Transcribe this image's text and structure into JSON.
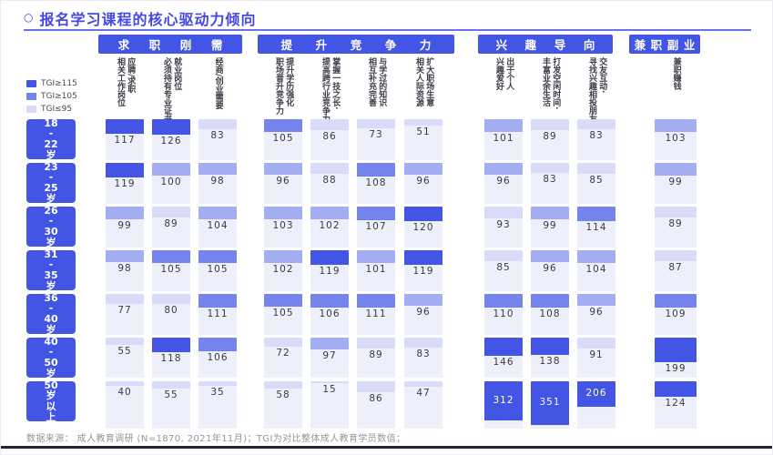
{
  "title": {
    "bullet": "○",
    "text": "报名学习课程的核心驱动力倾向"
  },
  "legend": [
    {
      "label": "TGI≥115",
      "tier": "tgi_ge_115"
    },
    {
      "label": "TGI≥105",
      "tier": "tgi_ge_105"
    },
    {
      "label": "TGI≤95",
      "tier": "tgi_le_95"
    }
  ],
  "colors": {
    "accent": "#4547e8",
    "tgi_ge_115": "#4355e5",
    "tgi_ge_105": "#7583ec",
    "tgi_mid_95_105": "#a3aef2",
    "tgi_le_95": "#d8dcf8",
    "cell_bg": "#edeffb",
    "header_bg": "#4355e5"
  },
  "footer": "数据来源： 成人教育调研 (N=1870, 2021年11月)；TGI为对比整体成人教育学员数值；",
  "chart_data": {
    "type": "heatmap",
    "title": "报名学习课程的核心驱动力倾向",
    "unit": "TGI",
    "legend": [
      "TGI≥115",
      "TGI≥105",
      "TGI≤95"
    ],
    "row_labels": [
      "18-22岁",
      "23-25岁",
      "26-30岁",
      "31-35岁",
      "36-40岁",
      "40-50岁",
      "50岁以上"
    ],
    "row_label_lines": [
      "18\n-\n22\n岁",
      "23\n-\n25\n岁",
      "26\n-\n30\n岁",
      "31\n-\n35\n岁",
      "36\n-\n40\n岁",
      "40\n-\n50\n岁",
      "50\n岁\n以\n上"
    ],
    "column_groups": [
      {
        "name": "求职刚需",
        "columns": [
          "应聘/求职\n相关工作岗位",
          "就业岗位\n必须持有专业证书",
          "经商/创业需要"
        ]
      },
      {
        "name": "提升竞争力",
        "columns": [
          "提升学历强化\n职场晋升竞争力",
          "掌握一技之长·\n提高跨行业竞争力",
          "与学过的知识\n相互补充完善",
          "扩大职场生意\n相关人际资源"
        ]
      },
      {
        "name": "兴趣导向",
        "columns": [
          "出于个人\n兴趣爱好",
          "打发空闲时间·\n丰富业余生活",
          "交友互动·\n寻找兴趣相投朋友"
        ]
      },
      {
        "name": "兼职副业",
        "columns": [
          "兼职赚钱"
        ]
      }
    ],
    "values": [
      [
        117,
        126,
        83,
        105,
        86,
        73,
        51,
        101,
        89,
        83,
        103
      ],
      [
        119,
        100,
        98,
        96,
        88,
        108,
        96,
        96,
        83,
        85,
        99
      ],
      [
        99,
        89,
        104,
        103,
        102,
        107,
        120,
        93,
        99,
        114,
        89
      ],
      [
        98,
        105,
        105,
        102,
        119,
        101,
        119,
        85,
        96,
        104,
        87
      ],
      [
        77,
        80,
        111,
        105,
        106,
        111,
        96,
        110,
        108,
        96,
        109
      ],
      [
        55,
        118,
        106,
        72,
        97,
        89,
        83,
        146,
        138,
        91,
        199
      ],
      [
        40,
        55,
        35,
        58,
        15,
        86,
        47,
        312,
        351,
        206,
        124
      ]
    ]
  }
}
